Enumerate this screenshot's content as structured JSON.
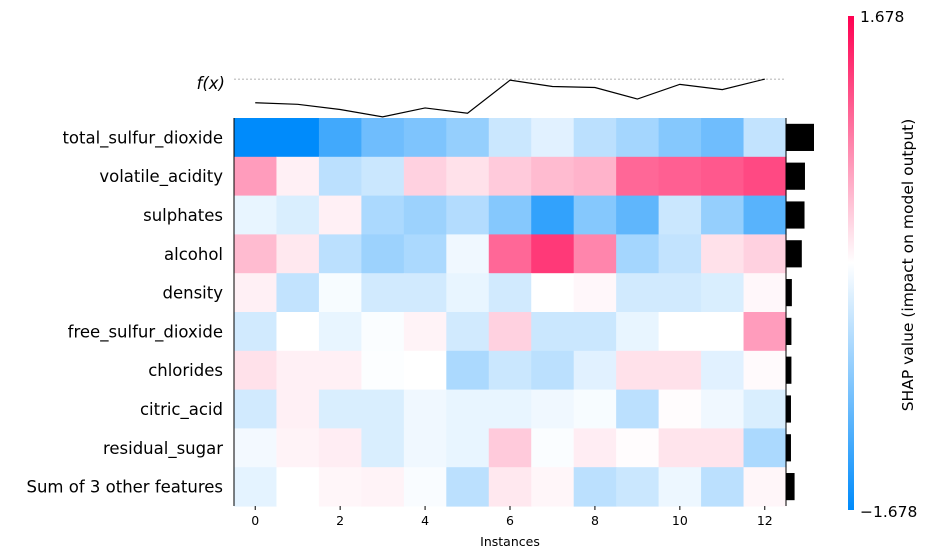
{
  "chart_data": {
    "type": "heatmap",
    "title": "",
    "xlabel": "Instances",
    "ylabel": "",
    "fx_label": "f(x)",
    "features": [
      "total_sulfur_dioxide",
      "volatile_acidity",
      "sulphates",
      "alcohol",
      "density",
      "free_sulfur_dioxide",
      "chlorides",
      "citric_acid",
      "residual_sugar",
      "Sum of 3 other features"
    ],
    "instances": [
      0,
      1,
      2,
      3,
      4,
      5,
      6,
      7,
      8,
      9,
      10,
      11,
      12
    ],
    "x_ticks": [
      0,
      2,
      4,
      6,
      8,
      10,
      12
    ],
    "values": [
      [
        -1.678,
        -1.678,
        -1.25,
        -0.95,
        -0.85,
        -0.7,
        -0.35,
        -0.2,
        -0.45,
        -0.6,
        -0.8,
        -0.95,
        -0.4
      ],
      [
        0.65,
        0.1,
        -0.45,
        -0.35,
        0.3,
        0.2,
        0.35,
        0.45,
        0.5,
        1.0,
        1.05,
        1.1,
        1.2
      ],
      [
        -0.15,
        -0.25,
        0.1,
        -0.55,
        -0.65,
        -0.5,
        -0.8,
        -1.35,
        -0.8,
        -1.05,
        -0.35,
        -0.7,
        -1.1
      ],
      [
        0.45,
        0.15,
        -0.45,
        -0.65,
        -0.55,
        -0.1,
        1.0,
        1.3,
        0.8,
        -0.6,
        -0.4,
        0.2,
        0.3
      ],
      [
        0.1,
        -0.4,
        -0.05,
        -0.3,
        -0.3,
        -0.15,
        -0.3,
        0.0,
        0.05,
        -0.3,
        -0.3,
        -0.25,
        0.05
      ],
      [
        -0.3,
        0.0,
        -0.15,
        -0.03,
        0.08,
        -0.3,
        0.3,
        -0.35,
        -0.35,
        -0.15,
        0.0,
        0.0,
        0.65
      ],
      [
        0.2,
        0.1,
        0.1,
        -0.02,
        0.0,
        -0.55,
        -0.35,
        -0.45,
        -0.2,
        0.2,
        0.2,
        -0.2,
        0.03
      ],
      [
        -0.3,
        0.1,
        -0.25,
        -0.25,
        -0.1,
        -0.15,
        -0.15,
        -0.1,
        -0.05,
        -0.45,
        0.02,
        -0.1,
        -0.25
      ],
      [
        -0.08,
        0.08,
        0.12,
        -0.25,
        -0.1,
        -0.15,
        0.35,
        -0.03,
        0.12,
        0.02,
        0.18,
        0.18,
        -0.55
      ],
      [
        -0.18,
        0.0,
        0.06,
        0.08,
        -0.04,
        -0.45,
        0.15,
        0.06,
        -0.45,
        -0.35,
        -0.12,
        -0.45,
        0.06
      ]
    ],
    "importance": [
      0.62,
      0.42,
      0.41,
      0.35,
      0.13,
      0.12,
      0.12,
      0.11,
      0.11,
      0.19
    ],
    "fx_values": [
      0.85,
      0.82,
      0.72,
      0.58,
      0.75,
      0.65,
      1.28,
      1.16,
      1.14,
      0.92,
      1.2,
      1.1,
      1.3
    ],
    "colorbar": {
      "label": "SHAP value (impact on model output)",
      "max_label": "1.678",
      "min_label": "−1.678",
      "vmin": -1.678,
      "vmax": 1.678,
      "negative_color": "#008bfb",
      "positive_color": "#ff0051"
    }
  }
}
